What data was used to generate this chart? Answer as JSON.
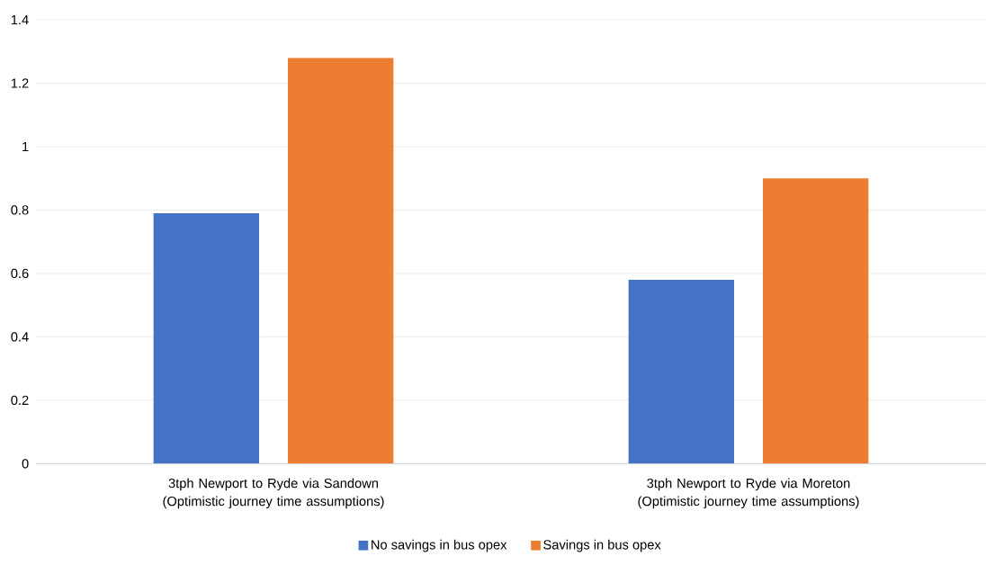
{
  "chart_data": {
    "type": "bar",
    "categories": [
      "3tph Newport to Ryde via Sandown (Optimistic journey time assumptions)",
      "3tph Newport to Ryde via Moreton (Optimistic journey time assumptions)"
    ],
    "series": [
      {
        "name": "No savings in bus opex",
        "color": "#4472c4",
        "values": [
          0.79,
          0.58
        ]
      },
      {
        "name": "Savings in bus opex",
        "color": "#ed7d31",
        "values": [
          1.28,
          0.9
        ]
      }
    ],
    "ylim": [
      0,
      1.4
    ],
    "yticks": [
      0,
      0.2,
      0.4,
      0.6,
      0.8,
      1,
      1.2,
      1.4
    ],
    "grid": "y",
    "legend": "bottom"
  }
}
